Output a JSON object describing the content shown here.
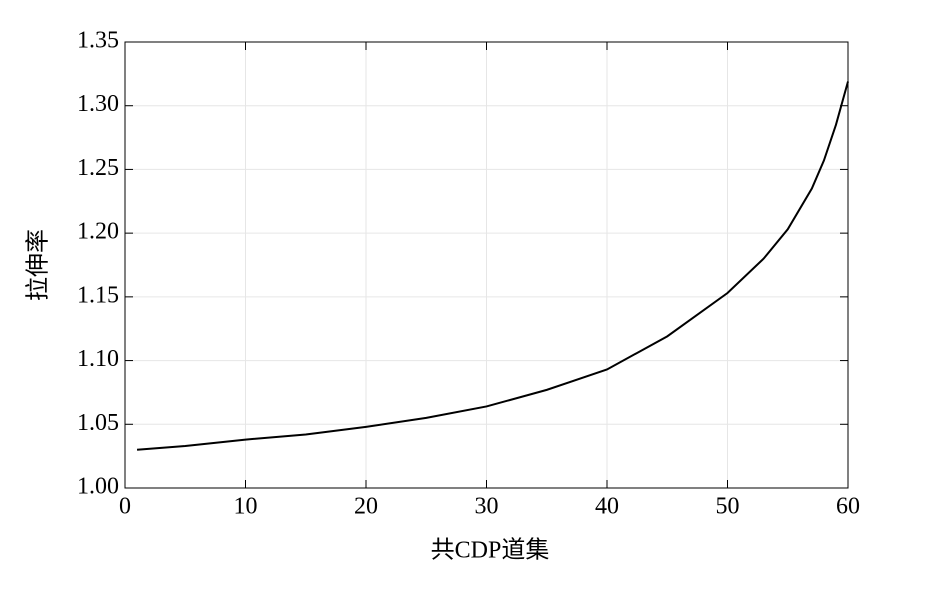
{
  "chart_data": {
    "type": "line",
    "xlabel": "共CDP道集",
    "ylabel": "拉伸率",
    "x": [
      1,
      5,
      10,
      15,
      20,
      25,
      30,
      35,
      40,
      45,
      50,
      53,
      55,
      57,
      58,
      59,
      60
    ],
    "series": [
      {
        "color": "#000000",
        "values": [
          1.03,
          1.033,
          1.038,
          1.042,
          1.048,
          1.055,
          1.064,
          1.077,
          1.093,
          1.119,
          1.153,
          1.18,
          1.203,
          1.235,
          1.257,
          1.285,
          1.319
        ]
      }
    ],
    "xlim": [
      0,
      60
    ],
    "xticks": [
      0,
      10,
      20,
      30,
      40,
      50,
      60
    ],
    "ylim": [
      1.0,
      1.35
    ],
    "yticks": [
      {
        "value": 1.0,
        "label": "1.00"
      },
      1.05,
      {
        "value": 1.1,
        "label": "1.10"
      },
      1.15,
      {
        "value": 1.2,
        "label": "1.20"
      },
      1.25,
      {
        "value": 1.3,
        "label": "1.30"
      },
      1.35
    ],
    "grid": true
  }
}
